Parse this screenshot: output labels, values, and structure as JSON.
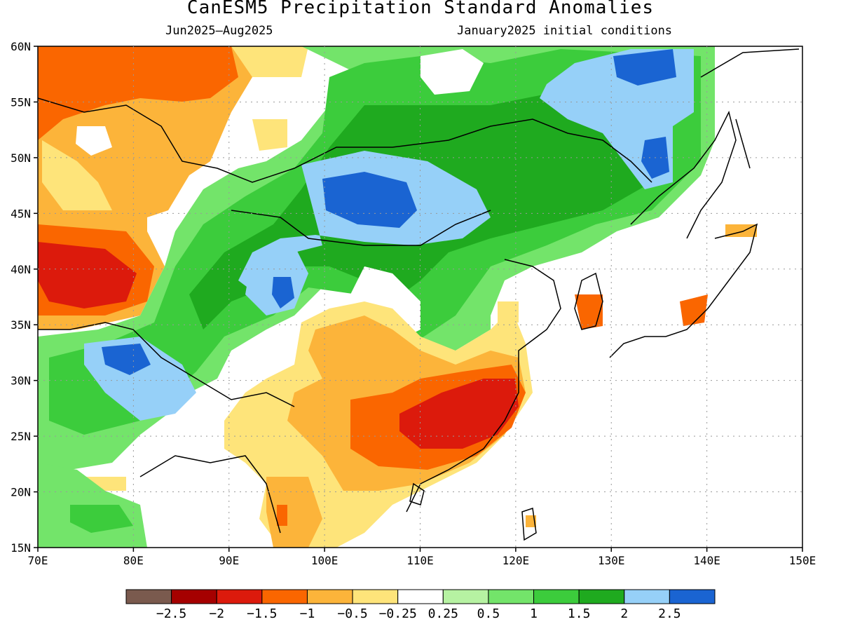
{
  "title": "CanESM5 Precipitation Standard Anomalies",
  "period": "Jun2025–Aug2025",
  "initial_conditions": "January2025 initial conditions",
  "lon_ticks": [
    "70E",
    "80E",
    "90E",
    "100E",
    "110E",
    "120E",
    "130E",
    "140E",
    "150E"
  ],
  "lat_ticks": [
    "60N",
    "55N",
    "50N",
    "45N",
    "40N",
    "35N",
    "30N",
    "25N",
    "20N",
    "15N"
  ],
  "colorbar": {
    "colors": [
      "#7a5a4e",
      "#a50000",
      "#dc1a0c",
      "#fa6600",
      "#fcb43a",
      "#fee47a",
      "#ffffff",
      "#b6f2a2",
      "#73e46a",
      "#3ccc3c",
      "#1faa1f",
      "#96d0f8",
      "#1a64d2"
    ],
    "labels": [
      "−2.5",
      "−2",
      "−1.5",
      "−1",
      "−0.5",
      "−0.25",
      "0.25",
      "0.5",
      "1",
      "1.5",
      "2",
      "2.5"
    ]
  }
}
